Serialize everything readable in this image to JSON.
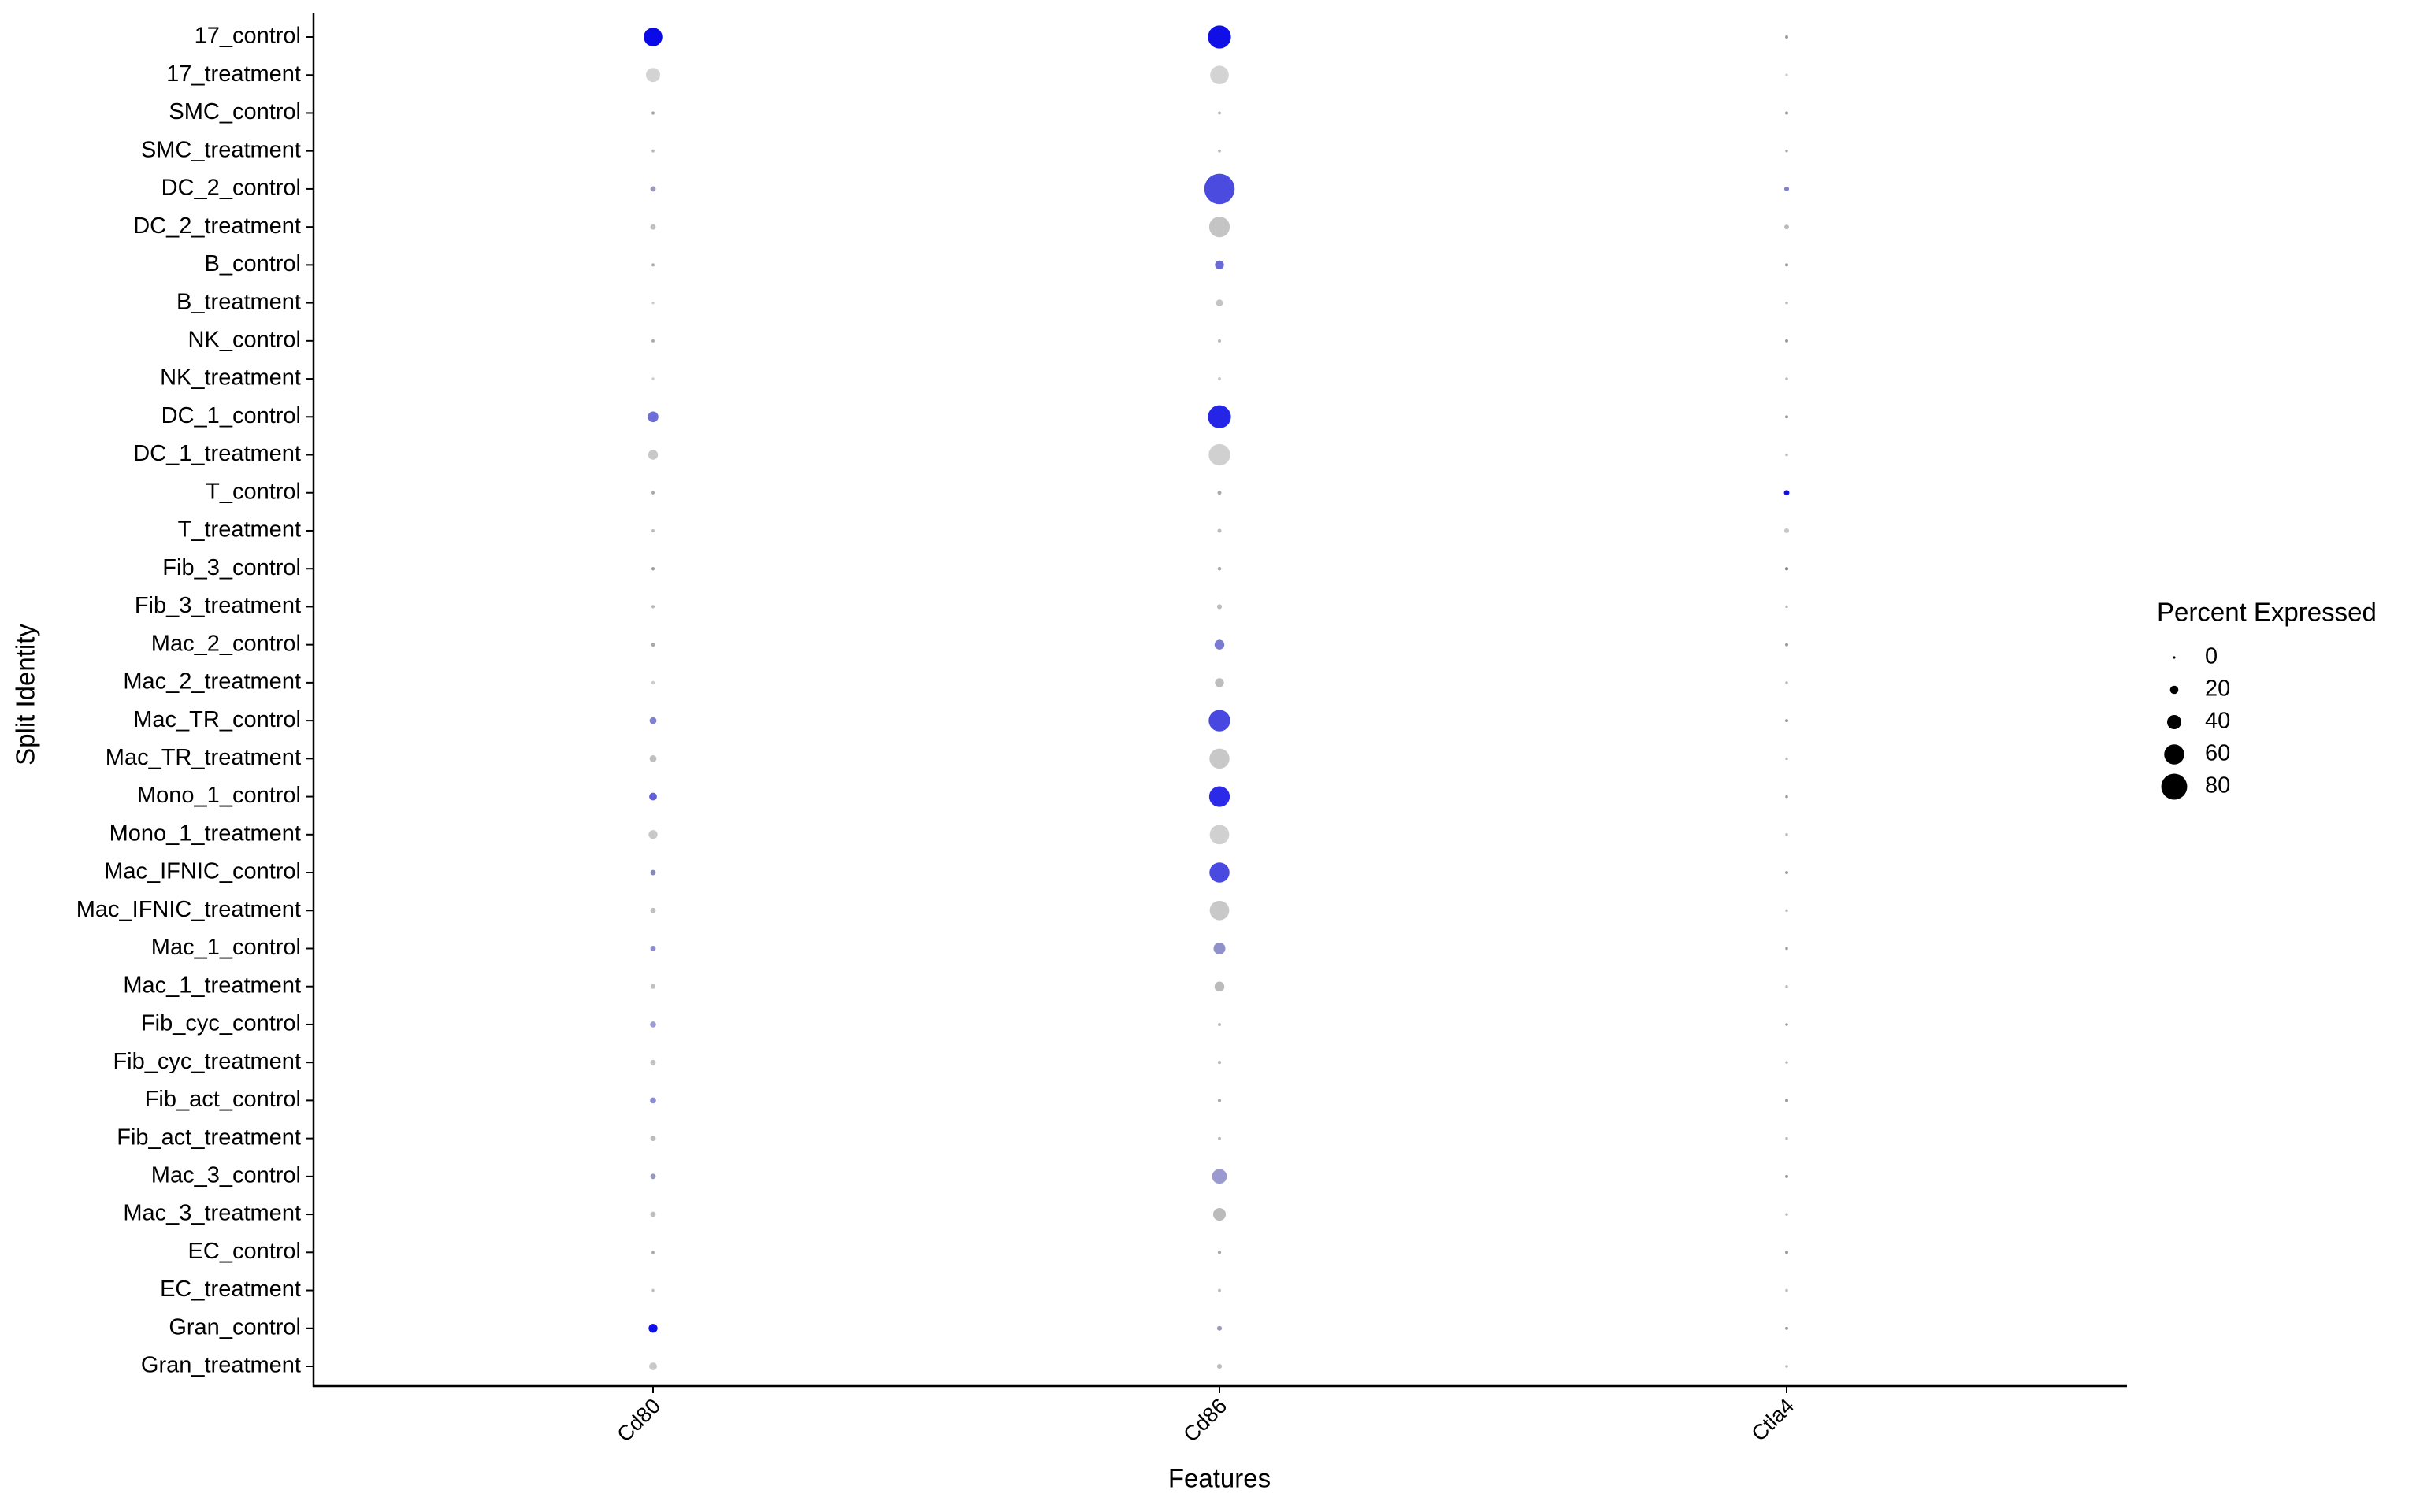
{
  "chart_data": {
    "type": "dotplot",
    "xlabel": "Features",
    "ylabel": "Split Identity",
    "x": [
      "Cd80",
      "Cd86",
      "Ctla4"
    ],
    "y": [
      "17_control",
      "17_treatment",
      "SMC_control",
      "SMC_treatment",
      "DC_2_control",
      "DC_2_treatment",
      "B_control",
      "B_treatment",
      "NK_control",
      "NK_treatment",
      "DC_1_control",
      "DC_1_treatment",
      "T_control",
      "T_treatment",
      "Fib_3_control",
      "Fib_3_treatment",
      "Mac_2_control",
      "Mac_2_treatment",
      "Mac_TR_control",
      "Mac_TR_treatment",
      "Mono_1_control",
      "Mono_1_treatment",
      "Mac_IFNIC_control",
      "Mac_IFNIC_treatment",
      "Mac_1_control",
      "Mac_1_treatment",
      "Fib_cyc_control",
      "Fib_cyc_treatment",
      "Fib_act_control",
      "Fib_act_treatment",
      "Mac_3_control",
      "Mac_3_treatment",
      "EC_control",
      "EC_treatment",
      "Gran_control",
      "Gran_treatment"
    ],
    "values": [
      [
        55,
        70,
        2
      ],
      [
        40,
        55,
        1
      ],
      [
        3,
        2,
        2
      ],
      [
        2,
        2,
        1
      ],
      [
        10,
        95,
        8
      ],
      [
        10,
        62,
        8
      ],
      [
        2,
        22,
        2
      ],
      [
        1,
        15,
        1
      ],
      [
        2,
        3,
        2
      ],
      [
        1,
        3,
        1
      ],
      [
        28,
        70,
        2
      ],
      [
        25,
        65,
        1
      ],
      [
        3,
        5,
        10
      ],
      [
        2,
        5,
        8
      ],
      [
        3,
        4,
        3
      ],
      [
        3,
        8,
        1
      ],
      [
        5,
        25,
        2
      ],
      [
        3,
        22,
        1
      ],
      [
        15,
        65,
        2
      ],
      [
        15,
        60,
        1
      ],
      [
        18,
        62,
        1
      ],
      [
        22,
        58,
        1
      ],
      [
        10,
        60,
        2
      ],
      [
        10,
        58,
        1
      ],
      [
        10,
        32,
        1
      ],
      [
        8,
        25,
        1
      ],
      [
        12,
        2,
        1
      ],
      [
        10,
        3,
        1
      ],
      [
        12,
        3,
        2
      ],
      [
        10,
        2,
        1
      ],
      [
        10,
        42,
        2
      ],
      [
        10,
        35,
        1
      ],
      [
        2,
        3,
        2
      ],
      [
        1,
        2,
        1
      ],
      [
        22,
        8,
        2
      ],
      [
        18,
        8,
        1
      ]
    ],
    "colors": [
      [
        "#0a0ae8",
        "#0f0fe6",
        "#999999"
      ],
      [
        "#d3d3d3",
        "#d3d3d3",
        "#cccccc"
      ],
      [
        "#aaaaaa",
        "#bbbbbb",
        "#999999"
      ],
      [
        "#bbbbbb",
        "#bbbbbb",
        "#aaaaaa"
      ],
      [
        "#9999bb",
        "#4b4be0",
        "#8080cc"
      ],
      [
        "#c0c0c0",
        "#c4c4c4",
        "#bbbbbb"
      ],
      [
        "#aaaaaa",
        "#6a6ad6",
        "#999999"
      ],
      [
        "#cccccc",
        "#c4c4c4",
        "#bbbbbb"
      ],
      [
        "#aaaaaa",
        "#bbbbbb",
        "#999999"
      ],
      [
        "#cccccc",
        "#cccccc",
        "#bbbbbb"
      ],
      [
        "#6e6ed8",
        "#2525e8",
        "#999999"
      ],
      [
        "#c8c8c8",
        "#d0d0d0",
        "#bbbbbb"
      ],
      [
        "#aaaaaa",
        "#aaaaaa",
        "#1010e0"
      ],
      [
        "#bbbbbb",
        "#bbbbbb",
        "#c8c8c8"
      ],
      [
        "#999999",
        "#aaaaaa",
        "#888888"
      ],
      [
        "#bbbbbb",
        "#bbbbbb",
        "#bbbbbb"
      ],
      [
        "#aaaaaa",
        "#7a7ad2",
        "#999999"
      ],
      [
        "#cccccc",
        "#bdbdbd",
        "#bbbbbb"
      ],
      [
        "#8080d0",
        "#4848e0",
        "#999999"
      ],
      [
        "#bfbfbf",
        "#c8c8c8",
        "#bbbbbb"
      ],
      [
        "#6060d8",
        "#2a2ae8",
        "#999999"
      ],
      [
        "#c8c8c8",
        "#d0d0d0",
        "#bbbbbb"
      ],
      [
        "#8888bb",
        "#4a4ae0",
        "#999999"
      ],
      [
        "#c0c0c0",
        "#c8c8c8",
        "#bbbbbb"
      ],
      [
        "#8c8cd0",
        "#9090cc",
        "#999999"
      ],
      [
        "#c0c0c0",
        "#bbbbbb",
        "#bbbbbb"
      ],
      [
        "#9c9cd8",
        "#bbbbbb",
        "#999999"
      ],
      [
        "#c4c4c4",
        "#bbbbbb",
        "#bbbbbb"
      ],
      [
        "#8c8cd0",
        "#aaaaaa",
        "#999999"
      ],
      [
        "#bbbbbb",
        "#bbbbbb",
        "#bbbbbb"
      ],
      [
        "#9898bb",
        "#9a9ad0",
        "#999999"
      ],
      [
        "#c0c0c0",
        "#bbbbbb",
        "#bbbbbb"
      ],
      [
        "#aaaaaa",
        "#aaaaaa",
        "#999999"
      ],
      [
        "#bbbbbb",
        "#bbbbbb",
        "#bbbbbb"
      ],
      [
        "#0f0fe8",
        "#9a9ab8",
        "#999999"
      ],
      [
        "#c8c8c8",
        "#bbbbbb",
        "#bbbbbb"
      ]
    ],
    "size_legend": {
      "title": "Percent Expressed",
      "values": [
        0,
        20,
        40,
        60,
        80
      ],
      "color": "#000000"
    }
  }
}
